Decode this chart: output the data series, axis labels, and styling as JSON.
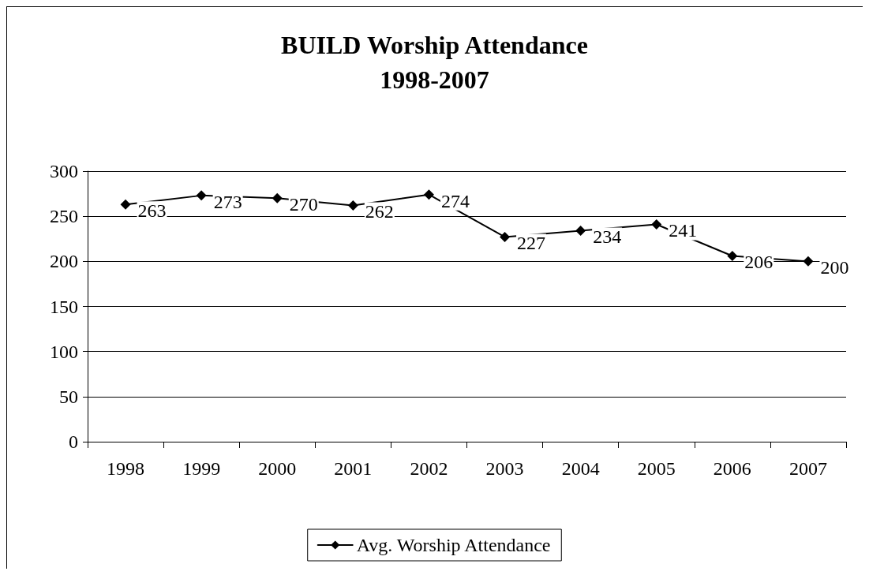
{
  "chart_data": {
    "type": "line",
    "title": "BUILD Worship Attendance\n1998-2007",
    "categories": [
      "1998",
      "1999",
      "2000",
      "2001",
      "2002",
      "2003",
      "2004",
      "2005",
      "2006",
      "2007"
    ],
    "series": [
      {
        "name": "Avg. Worship Attendance",
        "color": "#000000",
        "values": [
          263,
          273,
          270,
          262,
          274,
          227,
          234,
          241,
          206,
          200
        ]
      }
    ],
    "ylim": [
      0,
      300
    ],
    "yticks": [
      0,
      50,
      100,
      150,
      200,
      250,
      300
    ],
    "grid": "y",
    "legend": "bottom",
    "marker": "diamond",
    "line_style": "solid",
    "data_labels": true
  }
}
